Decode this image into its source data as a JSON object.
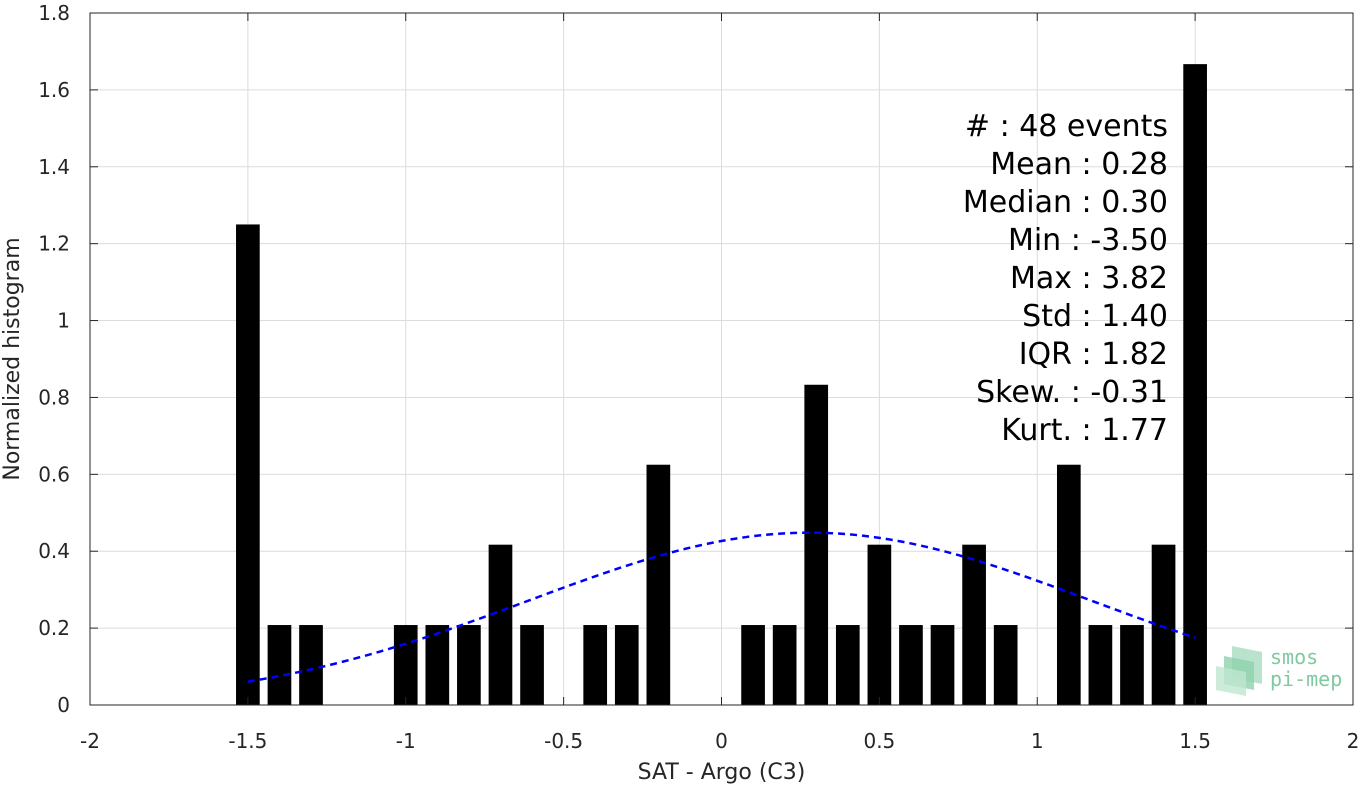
{
  "chart_data": {
    "type": "bar",
    "title": "",
    "xlabel": "SAT - Argo (C3)",
    "ylabel": "Normalized histogram",
    "xlim": [
      -2,
      2
    ],
    "ylim": [
      0,
      1.8
    ],
    "xticks": [
      -2,
      -1.5,
      -1,
      -0.5,
      0,
      0.5,
      1,
      1.5,
      2
    ],
    "xtick_labels": [
      "-2",
      "-1.5",
      "-1",
      "-0.5",
      "0",
      "0.5",
      "1",
      "1.5",
      "2"
    ],
    "yticks": [
      0,
      0.2,
      0.4,
      0.6,
      0.8,
      1,
      1.2,
      1.4,
      1.6,
      1.8
    ],
    "ytick_labels": [
      "0",
      "0.2",
      "0.4",
      "0.6",
      "0.8",
      "1",
      "1.2",
      "1.4",
      "1.6",
      "1.8"
    ],
    "grid": true,
    "bar_color": "#000000",
    "bar_width": 0.075,
    "bars": [
      {
        "x": -1.5,
        "y": 1.25
      },
      {
        "x": -1.4,
        "y": 0.208
      },
      {
        "x": -1.3,
        "y": 0.208
      },
      {
        "x": -1.0,
        "y": 0.208
      },
      {
        "x": -0.9,
        "y": 0.208
      },
      {
        "x": -0.8,
        "y": 0.208
      },
      {
        "x": -0.7,
        "y": 0.417
      },
      {
        "x": -0.6,
        "y": 0.208
      },
      {
        "x": -0.4,
        "y": 0.208
      },
      {
        "x": -0.3,
        "y": 0.208
      },
      {
        "x": -0.2,
        "y": 0.625
      },
      {
        "x": 0.1,
        "y": 0.208
      },
      {
        "x": 0.2,
        "y": 0.208
      },
      {
        "x": 0.3,
        "y": 0.833
      },
      {
        "x": 0.4,
        "y": 0.208
      },
      {
        "x": 0.5,
        "y": 0.417
      },
      {
        "x": 0.6,
        "y": 0.208
      },
      {
        "x": 0.7,
        "y": 0.208
      },
      {
        "x": 0.8,
        "y": 0.417
      },
      {
        "x": 0.9,
        "y": 0.208
      },
      {
        "x": 1.1,
        "y": 0.625
      },
      {
        "x": 1.2,
        "y": 0.208
      },
      {
        "x": 1.3,
        "y": 0.208
      },
      {
        "x": 1.4,
        "y": 0.417
      },
      {
        "x": 1.5,
        "y": 1.667
      }
    ],
    "fit_curve": {
      "color": "#0000ff",
      "style": "dashed",
      "mean": 0.28,
      "std": 0.89,
      "x_range": [
        -1.5,
        1.5
      ]
    },
    "stats_lines": [
      "#  : 48 events",
      "Mean : 0.28",
      "Median : 0.30",
      "Min : -3.50",
      "Max : 3.82",
      "Std : 1.40",
      "IQR : 1.82",
      "Skew. : -0.31",
      "Kurt. : 1.77"
    ]
  },
  "logo": {
    "line1": "smos",
    "line2": "pi-mep",
    "color": "#7fc9a0"
  }
}
